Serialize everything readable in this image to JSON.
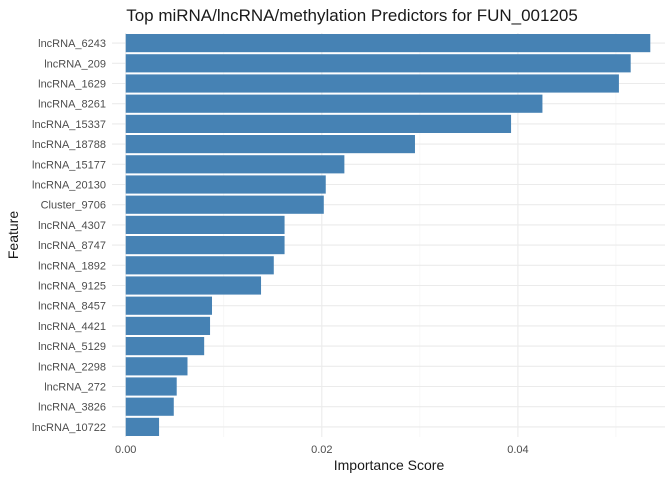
{
  "chart_data": {
    "type": "bar",
    "orientation": "horizontal",
    "title": "Top miRNA/lncRNA/methylation Predictors for FUN_001205",
    "xlabel": "Importance Score",
    "ylabel": "Feature",
    "xlim": [
      -0.0014,
      0.055
    ],
    "xticks": [
      0.0,
      0.02,
      0.04
    ],
    "xtick_labels": [
      "0.00",
      "0.02",
      "0.04"
    ],
    "grid": true,
    "bar_color": "#4682B4",
    "categories": [
      "lncRNA_6243",
      "lncRNA_209",
      "lncRNA_1629",
      "lncRNA_8261",
      "lncRNA_15337",
      "lncRNA_18788",
      "lncRNA_15177",
      "lncRNA_20130",
      "Cluster_9706",
      "lncRNA_4307",
      "lncRNA_8747",
      "lncRNA_1892",
      "lncRNA_9125",
      "lncRNA_8457",
      "lncRNA_4421",
      "lncRNA_5129",
      "lncRNA_2298",
      "lncRNA_272",
      "lncRNA_3826",
      "lncRNA_10722"
    ],
    "values": [
      0.0535,
      0.0515,
      0.0503,
      0.0425,
      0.0393,
      0.0295,
      0.0223,
      0.0204,
      0.0202,
      0.0162,
      0.0162,
      0.0151,
      0.0138,
      0.0088,
      0.0086,
      0.008,
      0.0063,
      0.0052,
      0.0049,
      0.0034
    ]
  }
}
